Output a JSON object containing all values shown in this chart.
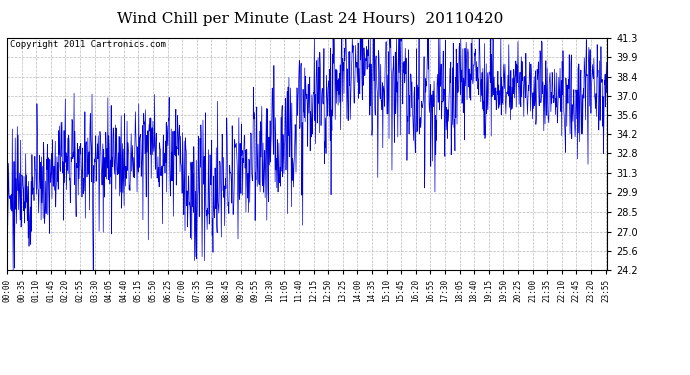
{
  "title": "Wind Chill per Minute (Last 24 Hours)  20110420",
  "copyright_text": "Copyright 2011 Cartronics.com",
  "yticks": [
    24.2,
    25.6,
    27.0,
    28.5,
    29.9,
    31.3,
    32.8,
    34.2,
    35.6,
    37.0,
    38.4,
    39.9,
    41.3
  ],
  "ylim": [
    24.2,
    41.3
  ],
  "line_color": "#0000dd",
  "bg_color": "#ffffff",
  "plot_bg_color": "#ffffff",
  "grid_color": "#bbbbbb",
  "title_fontsize": 11,
  "copyright_fontsize": 6.5,
  "num_minutes": 1440,
  "tick_step": 35
}
